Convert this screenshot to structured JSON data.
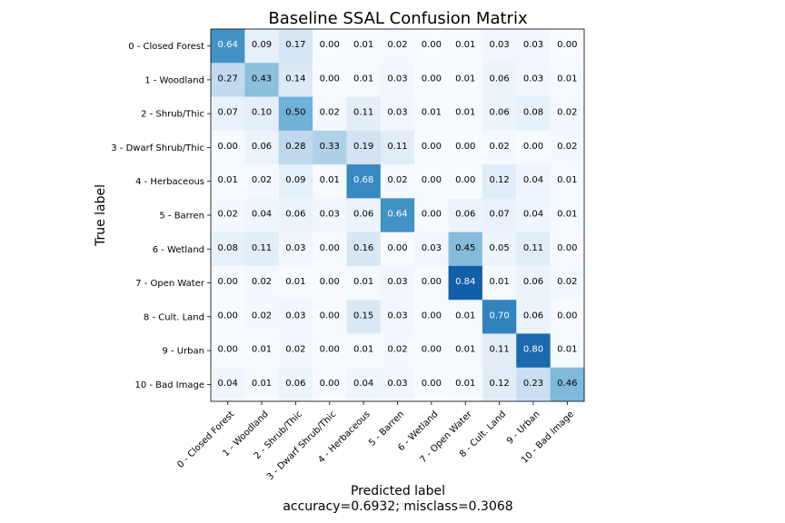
{
  "chart_data": {
    "type": "heatmap",
    "title": "Baseline SSAL Confusion Matrix",
    "xlabel": "Predicted label",
    "xlabel_sub": "accuracy=0.6932; misclass=0.3068",
    "ylabel": "True label",
    "categories": [
      "0 - Closed Forest",
      "1 - Woodland",
      "2 - Shrub/Thic",
      "3 - Dwarf Shrub/Thic",
      "4 - Herbaceous",
      "5 - Barren",
      "6 - Wetland",
      "7 - Open Water",
      "8 - Cult. Land",
      "9 - Urban",
      "10 - Bad Image"
    ],
    "colormap": "Blues",
    "vmin": 0,
    "vmax": 0.8,
    "matrix": [
      [
        0.64,
        0.09,
        0.17,
        0.0,
        0.01,
        0.02,
        0.0,
        0.01,
        0.03,
        0.03,
        0.0
      ],
      [
        0.27,
        0.43,
        0.14,
        0.0,
        0.01,
        0.03,
        0.0,
        0.01,
        0.06,
        0.03,
        0.01
      ],
      [
        0.07,
        0.1,
        0.5,
        0.02,
        0.11,
        0.03,
        0.01,
        0.01,
        0.06,
        0.08,
        0.02
      ],
      [
        0.0,
        0.06,
        0.28,
        0.33,
        0.19,
        0.11,
        0.0,
        0.0,
        0.02,
        0.0,
        0.02
      ],
      [
        0.01,
        0.02,
        0.09,
        0.01,
        0.68,
        0.02,
        0.0,
        0.0,
        0.12,
        0.04,
        0.01
      ],
      [
        0.02,
        0.04,
        0.06,
        0.03,
        0.06,
        0.64,
        0.0,
        0.06,
        0.07,
        0.04,
        0.01
      ],
      [
        0.08,
        0.11,
        0.03,
        0.0,
        0.16,
        0.0,
        0.03,
        0.45,
        0.05,
        0.11,
        0.0
      ],
      [
        0.0,
        0.02,
        0.01,
        0.0,
        0.01,
        0.03,
        0.0,
        0.84,
        0.01,
        0.06,
        0.02
      ],
      [
        0.0,
        0.02,
        0.03,
        0.0,
        0.15,
        0.03,
        0.0,
        0.01,
        0.7,
        0.06,
        0.0
      ],
      [
        0.0,
        0.01,
        0.02,
        0.0,
        0.01,
        0.02,
        0.0,
        0.01,
        0.11,
        0.8,
        0.01
      ],
      [
        0.04,
        0.01,
        0.06,
        0.0,
        0.04,
        0.03,
        0.0,
        0.01,
        0.12,
        0.23,
        0.46
      ]
    ],
    "grid": false
  }
}
